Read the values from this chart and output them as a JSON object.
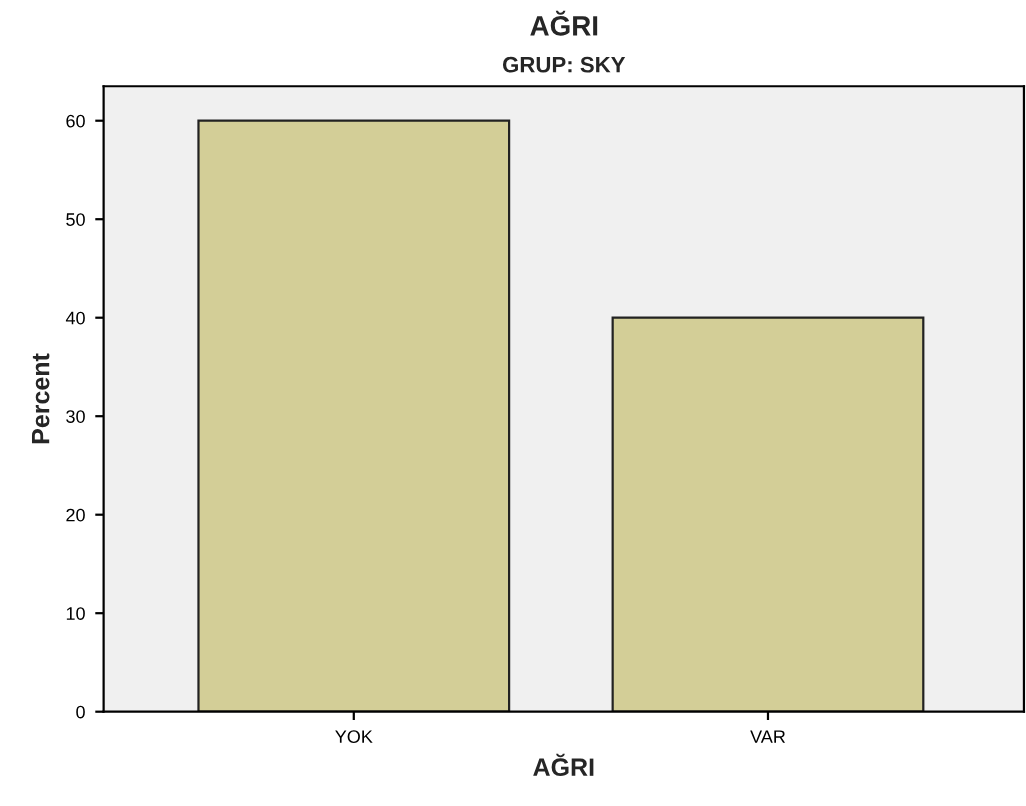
{
  "chart_data": {
    "type": "bar",
    "title": "AĞRI",
    "subtitle": "GRUP: SKY",
    "xlabel": "AĞRI",
    "ylabel": "Percent",
    "categories": [
      "YOK",
      "VAR"
    ],
    "values": [
      60,
      40
    ],
    "color": "#d3ce97",
    "ylim": [
      0,
      63.5
    ],
    "yticks": [
      0,
      10,
      20,
      30,
      40,
      50,
      60
    ],
    "grid": false,
    "legend": false
  }
}
